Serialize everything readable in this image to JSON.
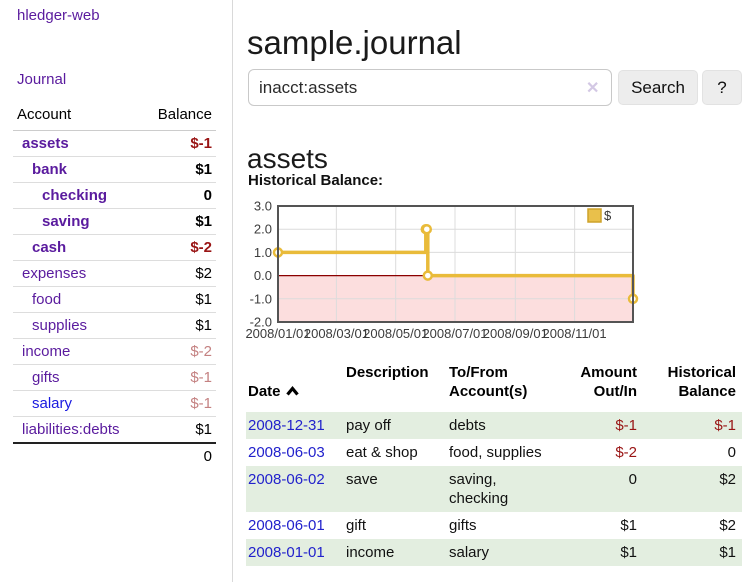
{
  "sidebar": {
    "brand": "hledger-web",
    "nav": {
      "journal": "Journal"
    },
    "accounts_table": {
      "headers": {
        "account": "Account",
        "balance": "Balance"
      },
      "rows": [
        {
          "name": "assets",
          "balance": "$-1",
          "name_class": "lvl0 matched",
          "bal_class": "matched neg"
        },
        {
          "name": "bank",
          "balance": "$1",
          "name_class": "lvl1 matched",
          "bal_class": "matched"
        },
        {
          "name": "checking",
          "balance": "0",
          "name_class": "lvl2 matched",
          "bal_class": "matched"
        },
        {
          "name": "saving",
          "balance": "$1",
          "name_class": "lvl2 matched",
          "bal_class": "matched"
        },
        {
          "name": "cash",
          "balance": "$-2",
          "name_class": "lvl1 matched",
          "bal_class": "matched neg"
        },
        {
          "name": "expenses",
          "balance": "$2",
          "name_class": "lvl0",
          "bal_class": ""
        },
        {
          "name": "food",
          "balance": "$1",
          "name_class": "lvl1",
          "bal_class": ""
        },
        {
          "name": "supplies",
          "balance": "$1",
          "name_class": "lvl1",
          "bal_class": ""
        },
        {
          "name": "income",
          "balance": "$-2",
          "name_class": "lvl0",
          "bal_class": "negl"
        },
        {
          "name": "gifts",
          "balance": "$-1",
          "name_class": "lvl1",
          "bal_class": "negl"
        },
        {
          "name": "salary",
          "balance": "$-1",
          "name_class": "lvl1 blue",
          "bal_class": "negl"
        },
        {
          "name": "liabilities:debts",
          "balance": "$1",
          "name_class": "lvl0",
          "bal_class": ""
        }
      ],
      "total": "0"
    }
  },
  "main": {
    "title": "sample.journal",
    "search": {
      "value": "inacct:assets",
      "clear_icon": "✕",
      "button": "Search",
      "help_button": "?"
    },
    "account_heading": "assets",
    "chart_label": "Historical Balance:",
    "register": {
      "headers": {
        "date": "Date",
        "description": "Description",
        "tofrom": "To/From\nAccount(s)",
        "amount": "Amount\nOut/In",
        "balance": "Historical\nBalance"
      },
      "rows": [
        {
          "date": "2008-12-31",
          "description": "pay off",
          "accounts": "debts",
          "amount": "$-1",
          "balance": "$-1",
          "row_class": "shaded",
          "amount_class": "neg",
          "balance_class": "neg"
        },
        {
          "date": "2008-06-03",
          "description": "eat & shop",
          "accounts": "food, supplies",
          "amount": "$-2",
          "balance": "0",
          "row_class": "",
          "amount_class": "neg",
          "balance_class": ""
        },
        {
          "date": "2008-06-02",
          "description": "save",
          "accounts": "saving,\nchecking",
          "amount": "0",
          "balance": "$2",
          "row_class": "shaded",
          "amount_class": "",
          "balance_class": ""
        },
        {
          "date": "2008-06-01",
          "description": "gift",
          "accounts": "gifts",
          "amount": "$1",
          "balance": "$2",
          "row_class": "",
          "amount_class": "",
          "balance_class": ""
        },
        {
          "date": "2008-01-01",
          "description": "income",
          "accounts": "salary",
          "amount": "$1",
          "balance": "$1",
          "row_class": "shaded",
          "amount_class": "",
          "balance_class": ""
        }
      ]
    }
  },
  "chart_data": {
    "type": "line",
    "step": true,
    "title": "Historical Balance:",
    "series": [
      {
        "name": "$",
        "color": "#e9bb3a",
        "points": [
          [
            "2008-01-01",
            1
          ],
          [
            "2008-06-01",
            2
          ],
          [
            "2008-06-02",
            2
          ],
          [
            "2008-06-03",
            0
          ],
          [
            "2008-12-31",
            -1
          ]
        ]
      }
    ],
    "xlim": [
      "2008-01-01",
      "2008-12-31"
    ],
    "ylim": [
      -2,
      3
    ],
    "yticks": [
      -2,
      -1,
      0,
      1,
      2,
      3
    ],
    "ytick_labels": [
      "-2.0",
      "-1.0",
      "0.0",
      "1.0",
      "2.0",
      "3.0"
    ],
    "xticks": [
      "2008-01-01",
      "2008-03-01",
      "2008-05-01",
      "2008-07-01",
      "2008-09-01",
      "2008-11-01"
    ],
    "xtick_labels": [
      "2008/01/01",
      "2008/03/01",
      "2008/05/01",
      "2008/07/01",
      "2008/09/01",
      "2008/11/01"
    ],
    "legend": {
      "position": "top-right",
      "label": "$"
    },
    "grid": true,
    "colors": {
      "line": "#e9bb3a",
      "marker_fill": "#ffffff",
      "negative_region": "#fcdede",
      "zero_line": "#8b0000",
      "grid": "#dcdcdc",
      "border": "#545454",
      "legend_fill": "#e9c04b",
      "legend_border": "#cda22a"
    }
  }
}
